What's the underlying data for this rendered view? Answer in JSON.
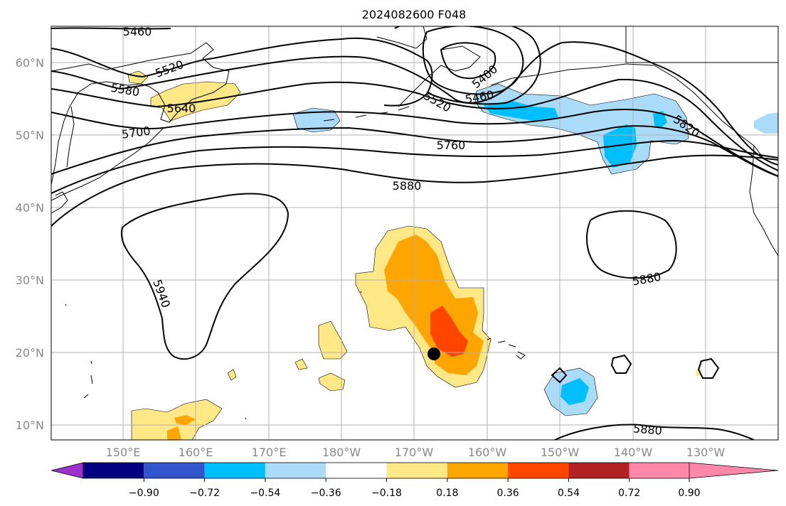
{
  "title": "2024082600 F048",
  "map": {
    "lon_labels": [
      "150°E",
      "160°E",
      "170°E",
      "180°W",
      "170°W",
      "160°W",
      "150°W",
      "140°W",
      "130°W"
    ],
    "lat_labels": [
      "60°N",
      "50°N",
      "40°N",
      "30°N",
      "20°N",
      "10°N"
    ],
    "contour_labels": [
      "5460",
      "5520",
      "5580",
      "5640",
      "5700",
      "5760",
      "5880",
      "5940",
      "5400",
      "5460",
      "5520",
      "5820",
      "5880",
      "5880"
    ],
    "marker": "storm-center",
    "colors": {
      "ltblue": "#aadcfa",
      "blue": "#00bfff",
      "yellow": "#ffe885",
      "orange": "#ffa500",
      "red": "#ff4500"
    }
  },
  "colorbar": {
    "ticks": [
      "−0.90",
      "−0.72",
      "−0.54",
      "−0.36",
      "−0.18",
      "0.18",
      "0.36",
      "0.54",
      "0.72",
      "0.90"
    ],
    "colors": [
      "#9933cc",
      "#000080",
      "#3355cc",
      "#00bfff",
      "#aadcfa",
      "#ffffff",
      "#ffe885",
      "#ffa500",
      "#ff4500",
      "#b22222",
      "#ff88aa"
    ]
  }
}
